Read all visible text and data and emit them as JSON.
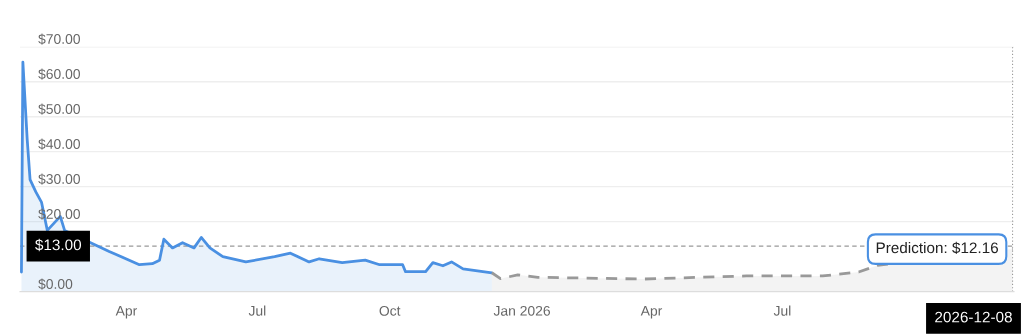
{
  "chart_data": {
    "type": "area",
    "series": [
      {
        "color": "#4a90e2",
        "line_style": "solid",
        "x": [
          "2025-01-18",
          "2025-01-19",
          "2025-01-22",
          "2025-01-24",
          "2025-01-28",
          "2025-02-01",
          "2025-02-05",
          "2025-02-14",
          "2025-02-17",
          "2025-03-20",
          "2025-04-10",
          "2025-04-19",
          "2025-04-24",
          "2025-04-27",
          "2025-05-03",
          "2025-05-10",
          "2025-05-18",
          "2025-05-23",
          "2025-05-29",
          "2025-06-07",
          "2025-06-23",
          "2025-07-13",
          "2025-07-24",
          "2025-08-06",
          "2025-08-13",
          "2025-08-29",
          "2025-09-14",
          "2025-09-24",
          "2025-10-10",
          "2025-10-12",
          "2025-10-26",
          "2025-10-31",
          "2025-11-07",
          "2025-11-13",
          "2025-11-21",
          "2025-12-11"
        ],
        "values": [
          5.6,
          65.6,
          43.5,
          32,
          28.5,
          25.5,
          17.5,
          21.5,
          17.5,
          11.5,
          7.7,
          8,
          9,
          15,
          12.5,
          14,
          12.5,
          15.5,
          12.5,
          10,
          8.5,
          10,
          11,
          8.5,
          9.4,
          8.3,
          9,
          7.7,
          7.7,
          5.7,
          5.7,
          8.3,
          7.4,
          8.5,
          6.5,
          5.4
        ]
      },
      {
        "color": "#999999",
        "line_style": "dashed",
        "x": [
          "2025-12-11",
          "2025-12-17",
          "2025-12-29",
          "2026-01-12",
          "2026-03-26",
          "2026-06-06",
          "2026-07-29",
          "2026-08-23",
          "2026-09-05",
          "2026-12-08"
        ],
        "values": [
          5.4,
          3.7,
          4.8,
          4.1,
          3.6,
          4.5,
          4.5,
          5.6,
          7.5,
          12.16
        ]
      }
    ],
    "xlim": [
      "2025-01-17",
      "2026-12-09"
    ],
    "xticks": [
      {
        "value": "2025-04-01",
        "label": "Apr"
      },
      {
        "value": "2025-07-01",
        "label": "Jul"
      },
      {
        "value": "2025-10-01",
        "label": "Oct"
      },
      {
        "value": "2026-01-01",
        "label": "Jan 2026"
      },
      {
        "value": "2026-04-01",
        "label": "Apr"
      },
      {
        "value": "2026-07-01",
        "label": "Jul"
      }
    ],
    "ylim": [
      0,
      70
    ],
    "yticks": [
      {
        "value": 0,
        "label": "$0.00"
      },
      {
        "value": 20,
        "label": "$20.00"
      },
      {
        "value": 30,
        "label": "$30.00"
      },
      {
        "value": 40,
        "label": "$40.00"
      },
      {
        "value": 50,
        "label": "$50.00"
      },
      {
        "value": 60,
        "label": "$60.00"
      },
      {
        "value": 70,
        "label": "$70.00"
      }
    ],
    "grid": "y",
    "ref_lines": [
      {
        "axis": "y",
        "value": 13,
        "label": "$13.00",
        "color": "#999999",
        "line_style": "dashed"
      },
      {
        "axis": "x",
        "value": "2026-12-08",
        "label": "2026-12-08",
        "color": "#999999",
        "line_style": "dotted"
      }
    ],
    "annotations": [
      {
        "text": "Prediction: $12.16",
        "x": "2026-12-08",
        "y": 12.16
      }
    ]
  }
}
